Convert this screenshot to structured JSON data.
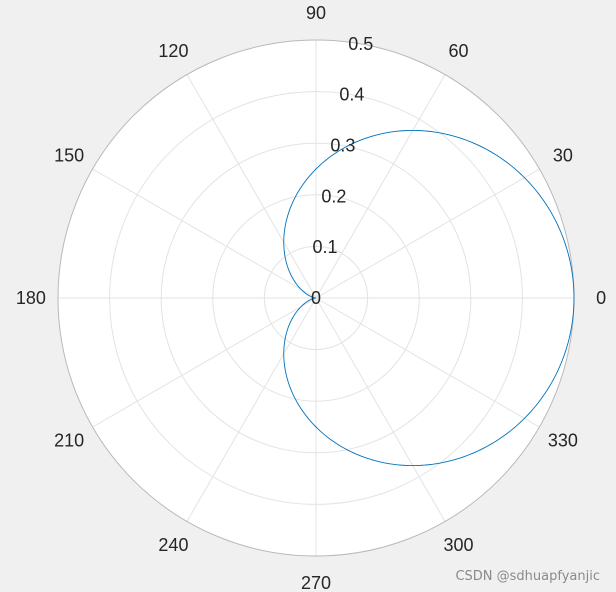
{
  "chart_data": {
    "type": "line",
    "coordinate_system": "polar",
    "title": "",
    "theta_unit": "degrees",
    "theta_ticks": [
      "0",
      "30",
      "60",
      "90",
      "120",
      "150",
      "180",
      "210",
      "240",
      "270",
      "300",
      "330"
    ],
    "r_ticks": [
      "0",
      "0.1",
      "0.2",
      "0.3",
      "0.4",
      "0.5"
    ],
    "rlim": [
      0,
      0.5
    ],
    "grid": true,
    "series": [
      {
        "color": "#0072bd",
        "theta_deg": [
          0,
          15,
          30,
          45,
          60,
          75,
          90,
          105,
          120,
          135,
          150,
          165,
          180,
          195,
          210,
          225,
          240,
          255,
          270,
          285,
          300,
          315,
          330,
          345,
          360
        ],
        "r": [
          0.5,
          0.4915,
          0.4665,
          0.4268,
          0.375,
          0.3147,
          0.25,
          0.1853,
          0.125,
          0.0732,
          0.0335,
          0.0085,
          0.0,
          0.0085,
          0.0335,
          0.0732,
          0.125,
          0.1853,
          0.25,
          0.3147,
          0.375,
          0.4268,
          0.4665,
          0.4915,
          0.5
        ]
      }
    ]
  },
  "watermark": "CSDN @sdhuapfyanjic"
}
